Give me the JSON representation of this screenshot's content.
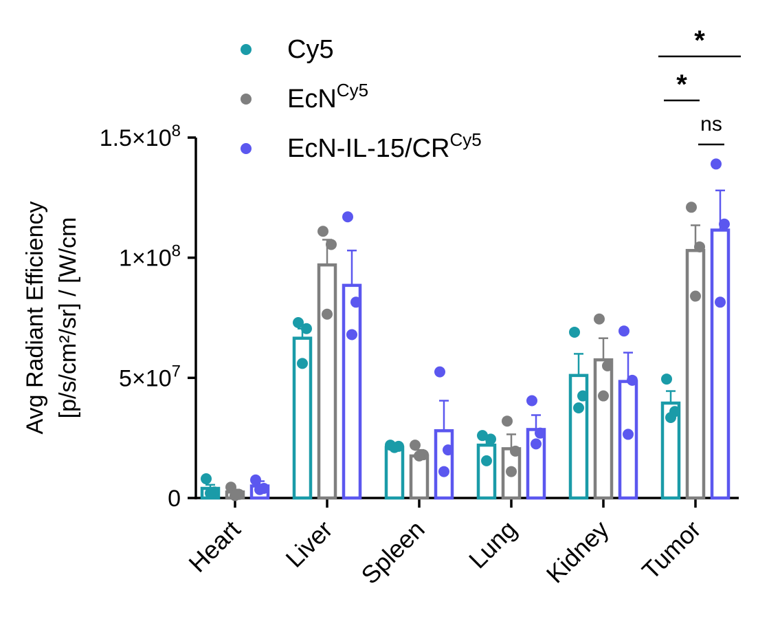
{
  "chart_data": {
    "type": "bar",
    "ylabel_line1": "Avg Radiant Efficiency",
    "ylabel_line2": "[p/s/cm²/sr] / [W/cm",
    "ylim": [
      0,
      150000000
    ],
    "yticks": [
      {
        "value": 0,
        "base": "0",
        "exp": ""
      },
      {
        "value": 50000000,
        "base": "5×10",
        "exp": "7"
      },
      {
        "value": 100000000,
        "base": "1×10",
        "exp": "8"
      },
      {
        "value": 150000000,
        "base": "1.5×10",
        "exp": "8"
      }
    ],
    "categories": [
      "Heart",
      "Liver",
      "Spleen",
      "Lung",
      "Kidney",
      "Tumor"
    ],
    "series": [
      {
        "name": "Cy5",
        "sup": "",
        "color": "#1a9ba8",
        "values": [
          4000000,
          66500000,
          21000000,
          22000000,
          51000000,
          39500000
        ],
        "errors": [
          1500000,
          4000000,
          1000000,
          3000000,
          9000000,
          5000000
        ],
        "points": [
          [
            8000000,
            2500000,
            2000000
          ],
          [
            73000000,
            70500000,
            56000000
          ],
          [
            22000000,
            21500000,
            21000000
          ],
          [
            26000000,
            24500000,
            15500000
          ],
          [
            69000000,
            42500000,
            37500000
          ],
          [
            49500000,
            36000000,
            33500000
          ]
        ]
      },
      {
        "name": "EcN",
        "sup": "Cy5",
        "color": "#7f7f7f",
        "values": [
          2500000,
          97000000,
          17500000,
          20500000,
          57500000,
          103000000
        ],
        "errors": [
          1000000,
          10500000,
          2500000,
          6000000,
          9000000,
          10500000
        ],
        "points": [
          [
            4500000,
            1500000,
            1000000
          ],
          [
            111000000,
            105500000,
            76500000
          ],
          [
            22000000,
            18000000,
            17500000
          ],
          [
            32000000,
            19500000,
            11000000
          ],
          [
            74500000,
            55000000,
            42500000
          ],
          [
            121000000,
            104500000,
            84000000
          ]
        ]
      },
      {
        "name": "EcN-IL-15/CR",
        "sup": "Cy5",
        "color": "#5b57ef",
        "values": [
          5000000,
          88500000,
          28000000,
          28500000,
          48500000,
          111500000
        ],
        "errors": [
          2000000,
          14500000,
          12500000,
          6000000,
          12000000,
          16500000
        ],
        "points": [
          [
            7500000,
            4000000,
            3500000
          ],
          [
            117000000,
            81500000,
            68000000
          ],
          [
            52500000,
            20000000,
            11000000
          ],
          [
            40500000,
            27000000,
            22500000
          ],
          [
            69500000,
            49000000,
            26500000
          ],
          [
            139000000,
            114000000,
            81500000
          ]
        ]
      }
    ],
    "significance": [
      {
        "label": "*",
        "from": [
          5,
          0
        ],
        "to": [
          5,
          2
        ],
        "level": 137500000
      },
      {
        "label": "*",
        "from": [
          5,
          0
        ],
        "to": [
          5,
          1
        ],
        "level": 125000000
      },
      {
        "label": "ns",
        "from": [
          5,
          1
        ],
        "to": [
          5,
          2
        ],
        "level": 115000000
      }
    ]
  }
}
